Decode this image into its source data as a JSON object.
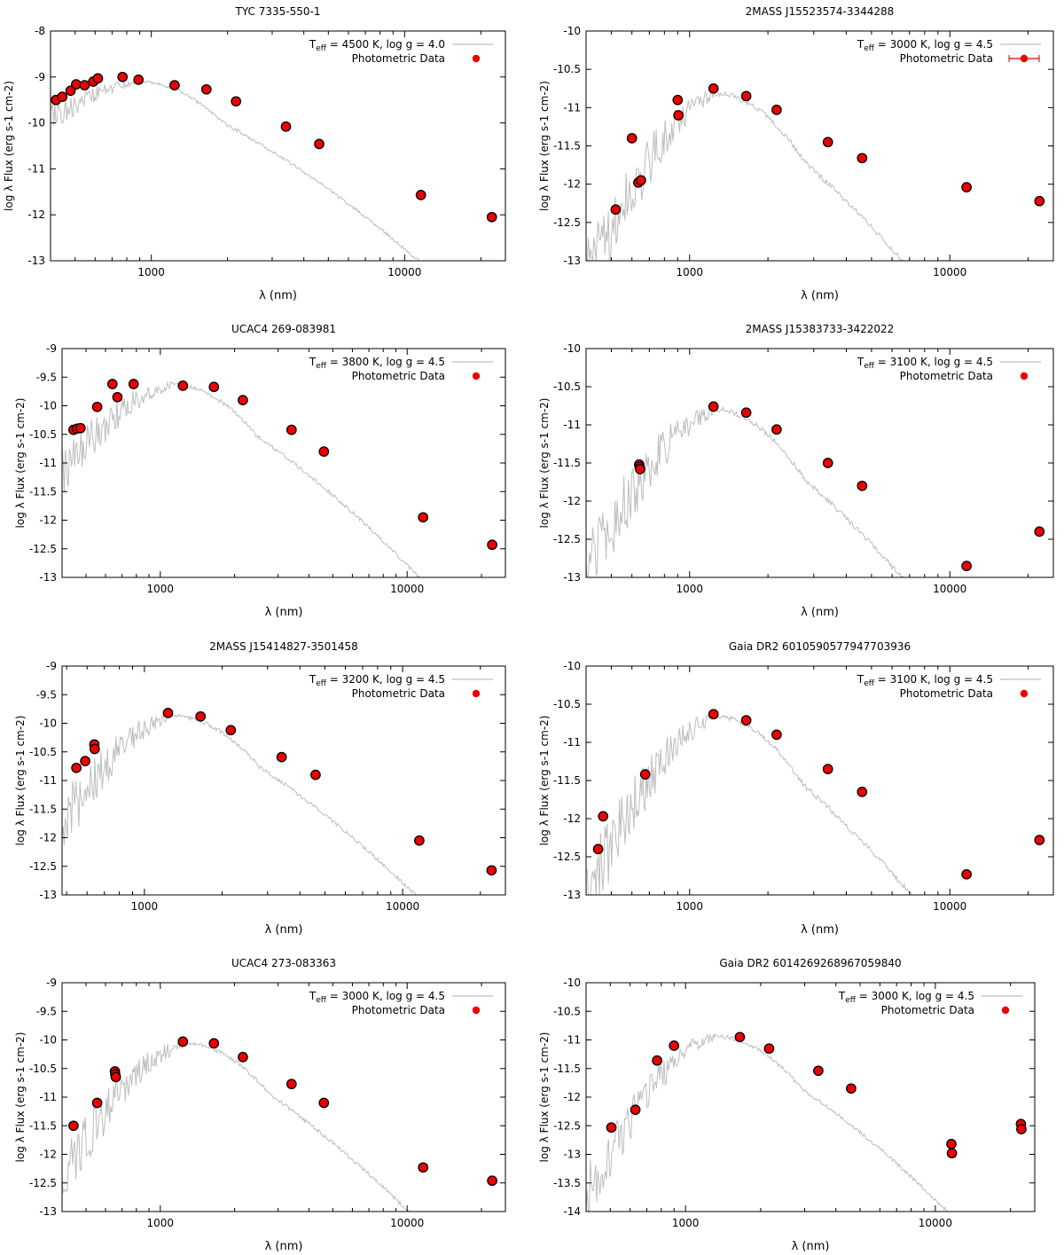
{
  "chart_data": [
    {
      "type": "scatter",
      "title": "TYC 7335-550-1",
      "xlabel": "λ (nm)",
      "ylabel": "log λ Flux (erg s-1 cm-2)",
      "xscale": "log",
      "xlim": [
        400,
        25000
      ],
      "ylim": [
        -13,
        -8
      ],
      "yticks": [
        -8,
        -9,
        -10,
        -11,
        -12,
        -13
      ],
      "xticks": [
        1000,
        10000
      ],
      "legend": {
        "position": "top-right",
        "model_label": "T_eff = 4500 K, log g = 4.0",
        "data_label": "Photometric Data",
        "errorbar_marker": false
      },
      "model": {
        "teff": 4500,
        "peak_wavelength": 860,
        "peak_flux": -9.05,
        "blue_end": -9.6,
        "noise": 0.22
      },
      "series": [
        {
          "name": "Photometric Data",
          "x": [
            420,
            445,
            480,
            505,
            545,
            590,
            615,
            770,
            890,
            1235,
            1650,
            2160,
            3400,
            4600,
            11600,
            22100
          ],
          "y": [
            -9.5,
            -9.43,
            -9.3,
            -9.16,
            -9.18,
            -9.1,
            -9.03,
            -9.0,
            -9.06,
            -9.18,
            -9.27,
            -9.53,
            -10.08,
            -10.46,
            -11.57,
            -12.05
          ]
        }
      ]
    },
    {
      "type": "scatter",
      "title": "2MASS J15523574-3344288",
      "xlabel": "λ (nm)",
      "ylabel": "log λ Flux (erg s-1 cm-2)",
      "xscale": "log",
      "xlim": [
        400,
        25000
      ],
      "ylim": [
        -13,
        -10
      ],
      "yticks": [
        -10,
        -10.5,
        -11,
        -11.5,
        -12,
        -12.5,
        -13
      ],
      "xticks": [
        1000,
        10000
      ],
      "legend": {
        "position": "top-right",
        "model_label": "T_eff = 3000 K, log g = 4.5",
        "data_label": "Photometric Data",
        "errorbar_marker": true
      },
      "model": {
        "teff": 3000,
        "peak_wavelength": 1250,
        "peak_flux": -10.78,
        "blue_end": -12.75,
        "noise": 0.45
      },
      "series": [
        {
          "name": "Photometric Data",
          "x": [
            520,
            600,
            635,
            650,
            900,
            905,
            1235,
            1650,
            2160,
            3400,
            4600,
            11600,
            22100
          ],
          "y": [
            -12.33,
            -11.4,
            -11.98,
            -11.95,
            -10.9,
            -11.1,
            -10.75,
            -10.85,
            -11.03,
            -11.45,
            -11.66,
            -12.04,
            -12.22
          ]
        }
      ]
    },
    {
      "type": "scatter",
      "title": "UCAC4 269-083981",
      "xlabel": "λ (nm)",
      "ylabel": "log λ Flux (erg s-1 cm-2)",
      "xscale": "log",
      "xlim": [
        400,
        25000
      ],
      "ylim": [
        -13,
        -9
      ],
      "yticks": [
        -9,
        -9.5,
        -10,
        -10.5,
        -11,
        -11.5,
        -12,
        -12.5,
        -13
      ],
      "xticks": [
        1000,
        10000
      ],
      "legend": {
        "position": "top-right",
        "model_label": "T_eff = 3800 K, log g = 4.5",
        "data_label": "Photometric Data",
        "errorbar_marker": false
      },
      "model": {
        "teff": 3800,
        "peak_wavelength": 1100,
        "peak_flux": -9.58,
        "blue_end": -10.7,
        "noise": 0.35
      },
      "series": [
        {
          "name": "Photometric Data",
          "x": [
            445,
            460,
            475,
            555,
            640,
            670,
            780,
            1235,
            1650,
            2160,
            3400,
            4600,
            11600,
            22100
          ],
          "y": [
            -10.42,
            -10.4,
            -10.39,
            -10.02,
            -9.62,
            -9.85,
            -9.62,
            -9.65,
            -9.67,
            -9.9,
            -10.42,
            -10.8,
            -11.95,
            -12.43
          ]
        }
      ]
    },
    {
      "type": "scatter",
      "title": "2MASS J15383733-3422022",
      "xlabel": "λ (nm)",
      "ylabel": "log λ Flux (erg s-1 cm-2)",
      "xscale": "log",
      "xlim": [
        400,
        25000
      ],
      "ylim": [
        -13,
        -10
      ],
      "yticks": [
        -10,
        -10.5,
        -11,
        -11.5,
        -12,
        -12.5,
        -13
      ],
      "xticks": [
        1000,
        10000
      ],
      "legend": {
        "position": "top-right",
        "model_label": "T_eff = 3100 K, log g = 4.5",
        "data_label": "Photometric Data",
        "errorbar_marker": false
      },
      "model": {
        "teff": 3100,
        "peak_wavelength": 1230,
        "peak_flux": -10.76,
        "blue_end": -12.4,
        "noise": 0.45
      },
      "series": [
        {
          "name": "Photometric Data",
          "x": [
            640,
            642,
            645,
            1235,
            1650,
            2160,
            3400,
            4600,
            11600,
            22100
          ],
          "y": [
            -11.52,
            -11.55,
            -11.58,
            -10.76,
            -10.84,
            -11.06,
            -11.5,
            -11.8,
            -12.85,
            -12.4
          ]
        }
      ]
    },
    {
      "type": "scatter",
      "title": "2MASS J15414827-3501458",
      "xlabel": "λ (nm)",
      "ylabel": "log λ Flux (erg s-1 cm-2)",
      "xscale": "log",
      "xlim": [
        480,
        25000
      ],
      "ylim": [
        -13,
        -9
      ],
      "yticks": [
        -9,
        -9.5,
        -10,
        -10.5,
        -11,
        -11.5,
        -12,
        -12.5,
        -13
      ],
      "xticks": [
        1000,
        10000
      ],
      "legend": {
        "position": "top-right",
        "model_label": "T_eff = 3200 K, log g = 4.5",
        "data_label": "Photometric Data",
        "errorbar_marker": false
      },
      "model": {
        "teff": 3200,
        "peak_wavelength": 1250,
        "peak_flux": -9.82,
        "blue_end": -11.2,
        "noise": 0.45
      },
      "series": [
        {
          "name": "Photometric Data",
          "x": [
            545,
            590,
            640,
            642,
            1235,
            1650,
            2160,
            3400,
            4600,
            11600,
            22100
          ],
          "y": [
            -10.78,
            -10.66,
            -10.37,
            -10.45,
            -9.82,
            -9.88,
            -10.12,
            -10.59,
            -10.9,
            -12.05,
            -12.57
          ]
        }
      ]
    },
    {
      "type": "scatter",
      "title": "Gaia DR2 6010590577947703936",
      "xlabel": "λ (nm)",
      "ylabel": "log λ Flux (erg s-1 cm-2)",
      "xscale": "log",
      "xlim": [
        400,
        25000
      ],
      "ylim": [
        -13,
        -10
      ],
      "yticks": [
        -10,
        -10.5,
        -11,
        -11.5,
        -12,
        -12.5,
        -13
      ],
      "xticks": [
        1000,
        10000
      ],
      "legend": {
        "position": "top-right",
        "model_label": "T_eff = 3100 K, log g = 4.5",
        "data_label": "Photometric Data",
        "errorbar_marker": false
      },
      "model": {
        "teff": 3100,
        "peak_wavelength": 1230,
        "peak_flux": -10.62,
        "blue_end": -12.5,
        "noise": 0.45
      },
      "series": [
        {
          "name": "Photometric Data",
          "x": [
            445,
            465,
            675,
            1235,
            1650,
            2160,
            3400,
            4600,
            11600,
            22100
          ],
          "y": [
            -12.4,
            -11.97,
            -11.42,
            -10.63,
            -10.71,
            -10.9,
            -11.35,
            -11.65,
            -12.73,
            -12.28
          ]
        }
      ]
    },
    {
      "type": "scatter",
      "title": "UCAC4 273-083363",
      "xlabel": "λ (nm)",
      "ylabel": "log λ Flux (erg s-1 cm-2)",
      "xscale": "log",
      "xlim": [
        400,
        25000
      ],
      "ylim": [
        -13,
        -9
      ],
      "yticks": [
        -9,
        -9.5,
        -10,
        -10.5,
        -11,
        -11.5,
        -12,
        -12.5,
        -13
      ],
      "xticks": [
        1000,
        10000
      ],
      "legend": {
        "position": "top-right",
        "model_label": "T_eff = 3000 K, log g = 4.5",
        "data_label": "Photometric Data",
        "errorbar_marker": false
      },
      "model": {
        "teff": 3000,
        "peak_wavelength": 1250,
        "peak_flux": -10.02,
        "blue_end": -11.8,
        "noise": 0.45
      },
      "series": [
        {
          "name": "Photometric Data",
          "x": [
            445,
            555,
            655,
            657,
            660,
            1235,
            1650,
            2160,
            3400,
            4600,
            11600,
            22100
          ],
          "y": [
            -11.5,
            -11.1,
            -10.55,
            -10.6,
            -10.65,
            -10.03,
            -10.06,
            -10.3,
            -10.77,
            -11.1,
            -12.23,
            -12.46
          ]
        }
      ]
    },
    {
      "type": "scatter",
      "title": "Gaia DR2 6014269268967059840",
      "xlabel": "λ (nm)",
      "ylabel": "log λ Flux (erg s-1 cm-2)",
      "xscale": "log",
      "xlim": [
        400,
        25000
      ],
      "ylim": [
        -14,
        -10
      ],
      "yticks": [
        -10,
        -10.5,
        -11,
        -11.5,
        -12,
        -12.5,
        -13,
        -13.5,
        -14
      ],
      "xticks": [
        1000,
        10000
      ],
      "legend": {
        "position": "top-right",
        "model_label": "T_eff = 3000 K, log g = 4.5",
        "data_label": "Photometric Data",
        "errorbar_marker": false
      },
      "model": {
        "teff": 3000,
        "peak_wavelength": 1300,
        "peak_flux": -10.9,
        "blue_end": -13.2,
        "noise": 0.45
      },
      "series": [
        {
          "name": "Photometric Data",
          "x": [
            505,
            630,
            770,
            900,
            1650,
            2160,
            3400,
            4600,
            11600,
            11650,
            22000,
            22100
          ],
          "y": [
            -12.53,
            -12.22,
            -11.36,
            -11.1,
            -10.95,
            -11.15,
            -11.54,
            -11.85,
            -12.82,
            -12.98,
            -12.47,
            -12.56
          ]
        }
      ]
    }
  ]
}
